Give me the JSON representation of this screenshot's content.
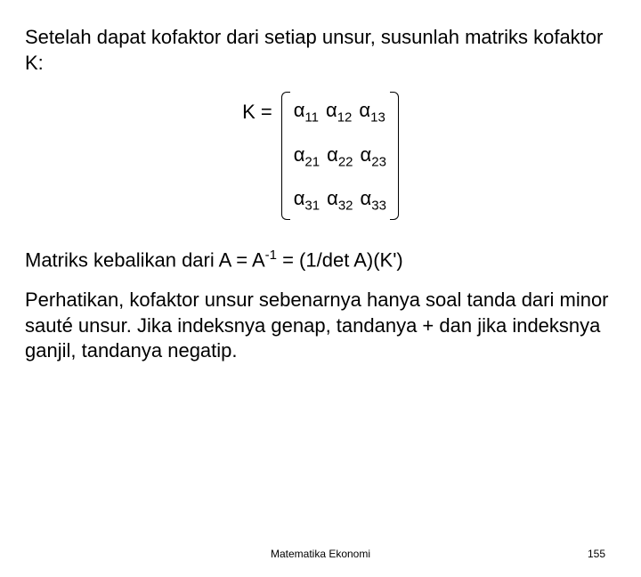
{
  "intro": "Setelah dapat kofaktor dari setiap unsur, susunlah matriks kofaktor K:",
  "matrix": {
    "lhs": "K  =",
    "symbol": "α",
    "rows": [
      [
        "11",
        "12",
        "13"
      ],
      [
        "21",
        "22",
        "23"
      ],
      [
        "31",
        "32",
        "33"
      ]
    ]
  },
  "para1_pre": "Matriks kebalikan dari A = A",
  "para1_sup": "-1",
  "para1_post": " =  (1/det A)(K')",
  "para2": "Perhatikan, kofaktor unsur sebenarnya hanya soal tanda dari minor sauté unsur. Jika indeksnya genap, tandanya + dan jika indeksnya ganjil, tandanya negatip.",
  "footer_center": "Matematika Ekonomi",
  "footer_page": "155",
  "colors": {
    "text": "#000000",
    "background": "#ffffff"
  }
}
